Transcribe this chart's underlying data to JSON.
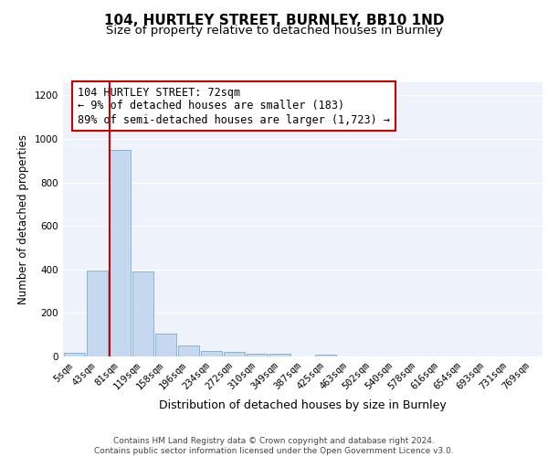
{
  "title1": "104, HURTLEY STREET, BURNLEY, BB10 1ND",
  "title2": "Size of property relative to detached houses in Burnley",
  "xlabel": "Distribution of detached houses by size in Burnley",
  "ylabel": "Number of detached properties",
  "bar_labels": [
    "5sqm",
    "43sqm",
    "81sqm",
    "119sqm",
    "158sqm",
    "196sqm",
    "234sqm",
    "272sqm",
    "310sqm",
    "349sqm",
    "387sqm",
    "425sqm",
    "463sqm",
    "502sqm",
    "540sqm",
    "578sqm",
    "616sqm",
    "654sqm",
    "693sqm",
    "731sqm",
    "769sqm"
  ],
  "bar_heights": [
    15,
    395,
    950,
    390,
    105,
    50,
    25,
    20,
    12,
    13,
    0,
    10,
    0,
    0,
    0,
    0,
    0,
    0,
    0,
    0,
    0
  ],
  "bar_color": "#c5d8f0",
  "bar_edgecolor": "#7aadd4",
  "highlight_line_color": "#cc0000",
  "annotation_text": "104 HURTLEY STREET: 72sqm\n← 9% of detached houses are smaller (183)\n89% of semi-detached houses are larger (1,723) →",
  "annotation_box_color": "#cc0000",
  "ylim": [
    0,
    1260
  ],
  "yticks": [
    0,
    200,
    400,
    600,
    800,
    1000,
    1200
  ],
  "background_color": "#eef2fa",
  "grid_color": "#ffffff",
  "footer_text": "Contains HM Land Registry data © Crown copyright and database right 2024.\nContains public sector information licensed under the Open Government Licence v3.0.",
  "title1_fontsize": 11,
  "title2_fontsize": 9.5,
  "xlabel_fontsize": 9,
  "ylabel_fontsize": 8.5,
  "tick_fontsize": 7.5,
  "annotation_fontsize": 8.5,
  "footer_fontsize": 6.5
}
